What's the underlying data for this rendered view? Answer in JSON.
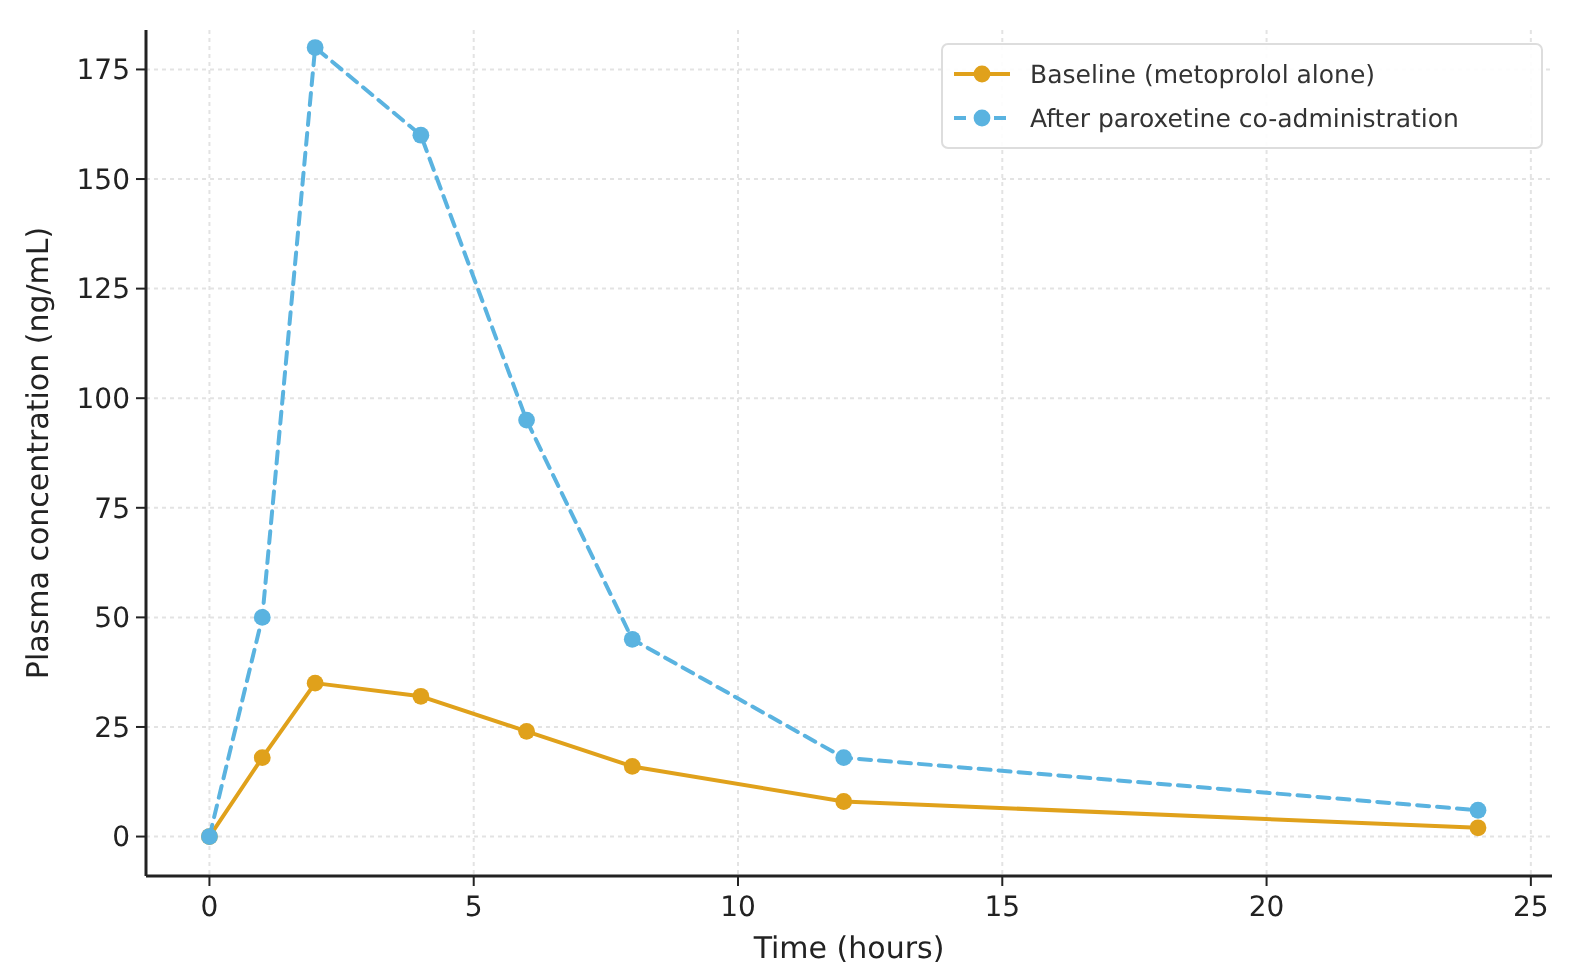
{
  "chart_data": {
    "type": "line",
    "xlabel": "Time (hours)",
    "ylabel": "Plasma concentration (ng/mL)",
    "xlim": [
      -1.2,
      25.4
    ],
    "xticks": [
      0,
      5,
      10,
      15,
      20,
      25
    ],
    "ylim": [
      -9,
      184
    ],
    "yticks": [
      0,
      25,
      50,
      75,
      100,
      125,
      150,
      175
    ],
    "grid": true,
    "legend": "top right",
    "marker": "circle",
    "series": [
      {
        "name": "Baseline (metoprolol alone)",
        "color": "#e0a11b",
        "line_style": "solid",
        "x": [
          0,
          1,
          2,
          4,
          6,
          8,
          12,
          24
        ],
        "values": [
          0,
          18,
          35,
          32,
          24,
          16,
          8,
          2
        ]
      },
      {
        "name": "After paroxetine co-administration",
        "color": "#5ab3e0",
        "line_style": "dashed",
        "x": [
          0,
          1,
          2,
          4,
          6,
          8,
          12,
          24
        ],
        "values": [
          0,
          50,
          180,
          160,
          95,
          45,
          18,
          6
        ]
      }
    ]
  }
}
